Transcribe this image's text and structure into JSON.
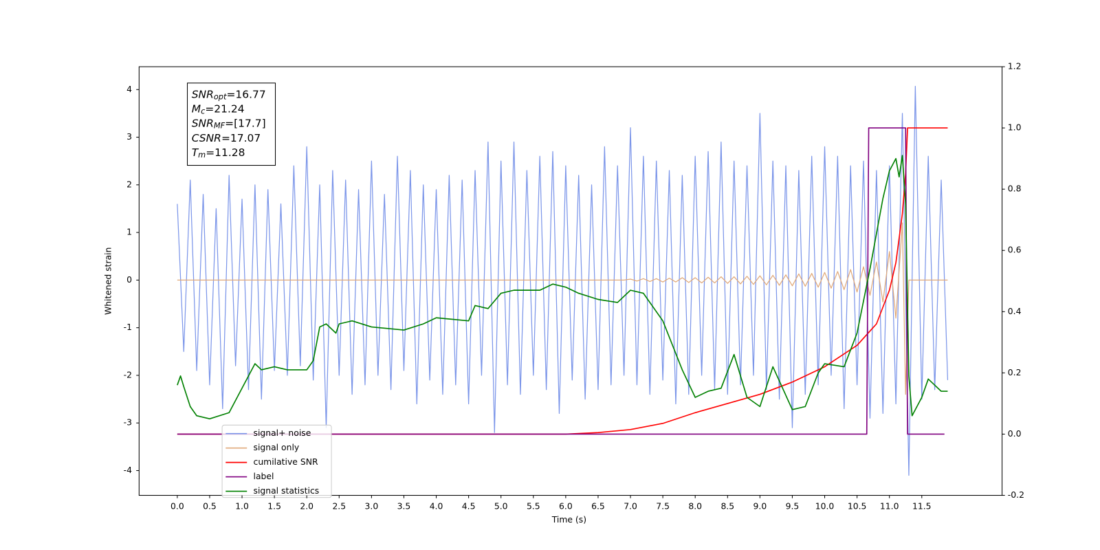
{
  "chart_data": {
    "type": "line",
    "xlabel": "Time (s)",
    "ylabel": "Whitened strain",
    "xlim": [
      -0.59,
      12.74
    ],
    "ylim": [
      -4.52,
      4.48
    ],
    "y2lim": [
      -0.2,
      1.2
    ],
    "xticks": [
      {
        "value": 0,
        "label": "0.0"
      },
      0.5,
      {
        "value": 1,
        "label": "1.0"
      },
      1.5,
      {
        "value": 2,
        "label": "2.0"
      },
      2.5,
      {
        "value": 3,
        "label": "3.0"
      },
      3.5,
      {
        "value": 4,
        "label": "4.0"
      },
      4.5,
      {
        "value": 5,
        "label": "5.0"
      },
      5.5,
      {
        "value": 6,
        "label": "6.0"
      },
      6.5,
      {
        "value": 7,
        "label": "7.0"
      },
      7.5,
      {
        "value": 8,
        "label": "8.0"
      },
      8.5,
      {
        "value": 9,
        "label": "9.0"
      },
      9.5,
      {
        "value": 10,
        "label": "10.0"
      },
      10.5,
      {
        "value": 11,
        "label": "11.0"
      },
      11.5
    ],
    "yticks": [
      -4,
      -3,
      -2,
      -1,
      0,
      1,
      2,
      3,
      4
    ],
    "y2ticks": [
      -0.2,
      {
        "value": 0,
        "label": "0.0"
      },
      0.2,
      0.4,
      0.6,
      0.8,
      {
        "value": 1,
        "label": "1.0"
      },
      1.2
    ],
    "legend_loc": "lower left",
    "annotations": [
      {
        "name": "SNR",
        "sub": "opt",
        "text": "=16.77"
      },
      {
        "name": "M",
        "sub": "c",
        "text": "=21.24"
      },
      {
        "name": "SNR",
        "sub": "MF",
        "text": "=[17.7]"
      },
      {
        "name": "CSNR",
        "text": "=17.07"
      },
      {
        "name": "T",
        "sub": "m",
        "text": "=11.28"
      }
    ],
    "series": [
      {
        "name": "signal+ noise",
        "color": "#7b95e9",
        "x": [
          0,
          0.1,
          0.2,
          0.3,
          0.4,
          0.5,
          0.6,
          0.7,
          0.8,
          0.9,
          1,
          1.1,
          1.2,
          1.3,
          1.4,
          1.5,
          1.6,
          1.7,
          1.8,
          1.9,
          2,
          2.1,
          2.2,
          2.3,
          2.4,
          2.5,
          2.6,
          2.7,
          2.8,
          2.9,
          3,
          3.1,
          3.2,
          3.3,
          3.4,
          3.5,
          3.6,
          3.7,
          3.8,
          3.9,
          4,
          4.1,
          4.2,
          4.3,
          4.4,
          4.5,
          4.6,
          4.7,
          4.8,
          4.9,
          5,
          5.1,
          5.2,
          5.3,
          5.4,
          5.5,
          5.6,
          5.7,
          5.8,
          5.9,
          6,
          6.1,
          6.2,
          6.3,
          6.4,
          6.5,
          6.6,
          6.7,
          6.8,
          6.9,
          7,
          7.1,
          7.2,
          7.3,
          7.4,
          7.5,
          7.6,
          7.7,
          7.8,
          7.9,
          8,
          8.1,
          8.2,
          8.3,
          8.4,
          8.5,
          8.6,
          8.7,
          8.8,
          8.9,
          9,
          9.1,
          9.2,
          9.3,
          9.4,
          9.5,
          9.6,
          9.7,
          9.8,
          9.9,
          10,
          10.1,
          10.2,
          10.3,
          10.4,
          10.5,
          10.6,
          10.7,
          10.8,
          10.9,
          11,
          11.1,
          11.2,
          11.3,
          11.4,
          11.5,
          11.6,
          11.7,
          11.8,
          11.9
        ],
        "values": [
          1.6,
          -1.5,
          2.1,
          -1.9,
          1.8,
          -2.2,
          1.5,
          -2.7,
          2.2,
          -1.8,
          1.7,
          -2.3,
          2.0,
          -2.5,
          1.9,
          -1.9,
          1.6,
          -2.0,
          2.4,
          -1.8,
          2.8,
          -2.1,
          2.0,
          -3.1,
          2.3,
          -2.0,
          2.1,
          -2.4,
          1.9,
          -2.2,
          2.5,
          -2.0,
          1.8,
          -2.3,
          2.6,
          -1.9,
          2.3,
          -2.6,
          2.0,
          -2.1,
          1.9,
          -2.4,
          2.2,
          -2.2,
          2.1,
          -2.6,
          2.3,
          -2.0,
          2.9,
          -3.2,
          2.5,
          -2.2,
          2.9,
          -2.4,
          2.3,
          -2.0,
          2.6,
          -2.3,
          2.7,
          -2.8,
          2.4,
          -2.1,
          2.2,
          -2.5,
          2.0,
          -2.3,
          2.8,
          -2.2,
          2.4,
          -2.0,
          3.2,
          -2.2,
          2.6,
          -2.4,
          2.5,
          -2.1,
          2.3,
          -2.6,
          2.2,
          -2.4,
          2.6,
          -2.0,
          2.7,
          -2.3,
          2.9,
          -2.4,
          2.5,
          -2.2,
          2.4,
          -2.0,
          3.5,
          -2.3,
          2.5,
          -2.5,
          2.4,
          -3.1,
          2.3,
          -2.4,
          2.6,
          -2.2,
          2.8,
          -2.0,
          2.6,
          -2.7,
          2.4,
          -2.2,
          2.5,
          -2.9,
          2.3,
          -2.8,
          2.4,
          -2.6,
          3.5,
          -4.1,
          4.07,
          -2.5,
          2.6,
          -2.3,
          2.1,
          -2.1
        ]
      },
      {
        "name": "signal only",
        "color": "#e0a878",
        "x": [
          0,
          6.9,
          7,
          7.1,
          7.2,
          7.3,
          7.4,
          7.5,
          7.6,
          7.7,
          7.8,
          7.9,
          8,
          8.1,
          8.2,
          8.3,
          8.4,
          8.5,
          8.6,
          8.7,
          8.8,
          8.9,
          9,
          9.1,
          9.2,
          9.3,
          9.4,
          9.5,
          9.6,
          9.7,
          9.8,
          9.9,
          10,
          10.1,
          10.2,
          10.3,
          10.4,
          10.5,
          10.6,
          10.7,
          10.8,
          10.9,
          11,
          11.1,
          11.2,
          11.25,
          11.3,
          11.9
        ],
        "values": [
          0,
          0,
          0.02,
          -0.02,
          0.03,
          -0.03,
          0.03,
          -0.04,
          0.04,
          -0.04,
          0.05,
          -0.05,
          0.05,
          -0.06,
          0.06,
          -0.06,
          0.07,
          -0.07,
          0.07,
          -0.08,
          0.08,
          -0.09,
          0.09,
          -0.1,
          0.1,
          -0.11,
          0.11,
          -0.12,
          0.13,
          -0.13,
          0.14,
          -0.15,
          0.16,
          -0.17,
          0.18,
          -0.2,
          0.22,
          -0.25,
          0.28,
          -0.32,
          0.38,
          -0.46,
          0.6,
          -0.8,
          1.2,
          -2.4,
          0,
          0
        ]
      },
      {
        "name": "cumilative SNR",
        "color": "#ff0000",
        "axis": "y2",
        "x": [
          0,
          6,
          6.5,
          7,
          7.5,
          8,
          8.5,
          9,
          9.5,
          10,
          10.5,
          10.8,
          11,
          11.1,
          11.2,
          11.25,
          11.28,
          11.3,
          11.9
        ],
        "values": [
          0,
          0,
          0.005,
          0.015,
          0.035,
          0.07,
          0.1,
          0.13,
          0.17,
          0.22,
          0.29,
          0.36,
          0.47,
          0.56,
          0.72,
          0.85,
          1.0,
          1.0,
          1.0
        ]
      },
      {
        "name": "label",
        "color": "#800080",
        "axis": "y2",
        "x": [
          0,
          10.65,
          10.68,
          11.25,
          11.28,
          11.85
        ],
        "values": [
          0,
          0,
          1,
          1,
          0,
          0
        ]
      },
      {
        "name": "signal statistics",
        "color": "#008000",
        "axis": "y2",
        "x": [
          0,
          0.05,
          0.1,
          0.2,
          0.3,
          0.5,
          0.8,
          1,
          1.2,
          1.3,
          1.5,
          1.7,
          2,
          2.1,
          2.2,
          2.3,
          2.45,
          2.5,
          2.7,
          3,
          3.5,
          3.8,
          4,
          4.5,
          4.6,
          4.8,
          5,
          5.2,
          5.4,
          5.6,
          5.8,
          6,
          6.2,
          6.5,
          6.8,
          7,
          7.2,
          7.5,
          7.8,
          8,
          8.2,
          8.4,
          8.6,
          8.8,
          9,
          9.2,
          9.5,
          9.7,
          9.9,
          10,
          10.3,
          10.5,
          10.7,
          10.9,
          11,
          11.1,
          11.15,
          11.2,
          11.25,
          11.3,
          11.35,
          11.5,
          11.6,
          11.8,
          11.9
        ],
        "values": [
          0.16,
          0.19,
          0.155,
          0.09,
          0.06,
          0.05,
          0.07,
          0.15,
          0.23,
          0.21,
          0.22,
          0.21,
          0.21,
          0.24,
          0.35,
          0.36,
          0.33,
          0.36,
          0.37,
          0.35,
          0.34,
          0.36,
          0.38,
          0.37,
          0.42,
          0.41,
          0.46,
          0.47,
          0.47,
          0.47,
          0.49,
          0.48,
          0.46,
          0.44,
          0.43,
          0.47,
          0.46,
          0.37,
          0.21,
          0.12,
          0.14,
          0.15,
          0.26,
          0.12,
          0.09,
          0.22,
          0.08,
          0.09,
          0.2,
          0.23,
          0.22,
          0.33,
          0.54,
          0.77,
          0.86,
          0.9,
          0.84,
          0.91,
          0.75,
          0.19,
          0.06,
          0.12,
          0.18,
          0.14,
          0.14
        ]
      }
    ]
  }
}
